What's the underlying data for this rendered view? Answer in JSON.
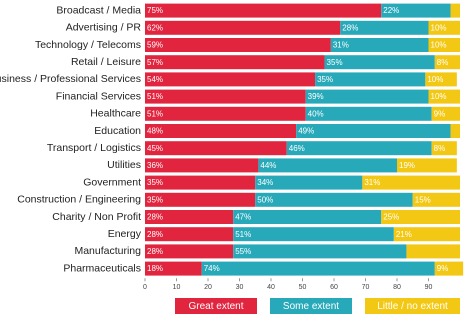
{
  "chart_data": {
    "type": "stacked-bar-horizontal",
    "categories": [
      "Broadcast / Media",
      "Advertising / PR",
      "Technology / Telecoms",
      "Retail / Leisure",
      "Business / Professional Services",
      "Financial Services",
      "Healthcare",
      "Education",
      "Transport / Logistics",
      "Utilities",
      "Government",
      "Construction / Engineering",
      "Charity / Non Profit",
      "Energy",
      "Manufacturing",
      "Pharmaceuticals"
    ],
    "series": [
      {
        "name": "Great extent",
        "color": "#e1253f",
        "values": [
          75,
          62,
          59,
          57,
          54,
          51,
          51,
          48,
          45,
          36,
          35,
          35,
          28,
          28,
          28,
          18
        ],
        "value_labels": [
          "75%",
          "62%",
          "59%",
          "57%",
          "54%",
          "51%",
          "51%",
          "48%",
          "45%",
          "36%",
          "35%",
          "35%",
          "28%",
          "28%",
          "28%",
          "18%"
        ]
      },
      {
        "name": "Some extent",
        "color": "#28a9b9",
        "values": [
          22,
          28,
          31,
          35,
          35,
          39,
          40,
          49,
          46,
          44,
          34,
          50,
          47,
          51,
          55,
          74
        ],
        "value_labels": [
          "22%",
          "28%",
          "31%",
          "35%",
          "35%",
          "39%",
          "40%",
          "49%",
          "46%",
          "44%",
          "34%",
          "50%",
          "47%",
          "51%",
          "55%",
          "74%"
        ]
      },
      {
        "name": "Little / no extent",
        "color": "#f3c814",
        "values": [
          3,
          10,
          10,
          8,
          10,
          10,
          9,
          3,
          8,
          19,
          31,
          15,
          25,
          21,
          17,
          9
        ],
        "value_labels": [
          null,
          "10%",
          "10%",
          "8%",
          "10%",
          "10%",
          "9%",
          null,
          "8%",
          "19%",
          "31%",
          "15%",
          "25%",
          "21%",
          null,
          "9%"
        ]
      }
    ],
    "xlim": [
      0,
      100
    ],
    "xticks": [
      0,
      10,
      20,
      30,
      40,
      50,
      60,
      70,
      80,
      90
    ]
  }
}
